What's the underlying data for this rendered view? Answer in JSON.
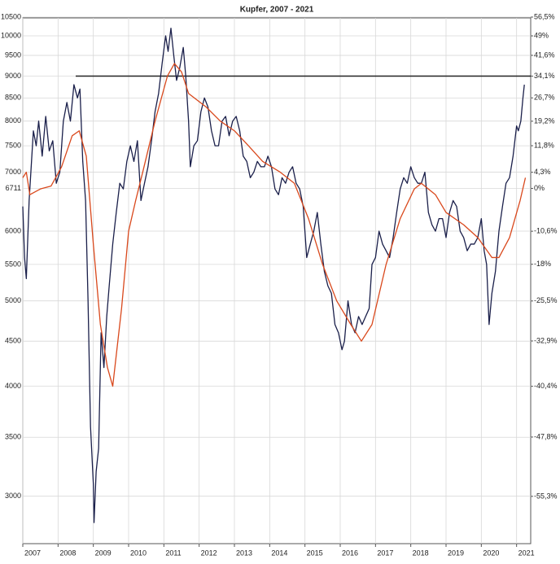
{
  "chart_data": {
    "type": "line",
    "title": "Kupfer, 2007 - 2021",
    "log_scale": true,
    "grid": true,
    "xlim": [
      2007,
      2021.4
    ],
    "xticks": [
      2007,
      2008,
      2009,
      2010,
      2011,
      2012,
      2013,
      2014,
      2015,
      2016,
      2017,
      2018,
      2019,
      2020,
      2021
    ],
    "ylim": [
      2650,
      10750
    ],
    "yticks": [
      3000,
      3500,
      4000,
      4500,
      5000,
      5500,
      6000,
      6711,
      7000,
      7500,
      8000,
      8500,
      9000,
      9500,
      10000,
      10500
    ],
    "y2lim": [
      -60.5,
      60.2
    ],
    "y2ticks": [
      {
        "value": -55.3,
        "label": "-55,3%"
      },
      {
        "value": -47.8,
        "label": "-47,8%"
      },
      {
        "value": -40.4,
        "label": "-40,4%"
      },
      {
        "value": -32.9,
        "label": "-32,9%"
      },
      {
        "value": -25.5,
        "label": "-25,5%"
      },
      {
        "value": -18,
        "label": "-18%"
      },
      {
        "value": -10.6,
        "label": "-10,6%"
      },
      {
        "value": 0,
        "label": "0%"
      },
      {
        "value": 4.3,
        "label": "4,3%"
      },
      {
        "value": 11.8,
        "label": "11,8%"
      },
      {
        "value": 19.2,
        "label": "19,2%"
      },
      {
        "value": 26.7,
        "label": "26,7%"
      },
      {
        "value": 34.1,
        "label": "34,1%"
      },
      {
        "value": 41.6,
        "label": "41,6%"
      },
      {
        "value": 49,
        "label": "49%"
      },
      {
        "value": 56.5,
        "label": "56,5%"
      }
    ],
    "hlines": [
      {
        "y": 9000,
        "x_start": 2008.5,
        "color": "#222222"
      }
    ],
    "series": [
      {
        "color": "#1a1f4a",
        "x": [
          2007.0,
          2007.05,
          2007.1,
          2007.18,
          2007.3,
          2007.38,
          2007.45,
          2007.55,
          2007.65,
          2007.75,
          2007.85,
          2007.95,
          2008.05,
          2008.15,
          2008.25,
          2008.35,
          2008.45,
          2008.55,
          2008.62,
          2008.7,
          2008.78,
          2008.85,
          2008.92,
          2009.0,
          2009.02,
          2009.08,
          2009.15,
          2009.22,
          2009.3,
          2009.38,
          2009.45,
          2009.55,
          2009.65,
          2009.75,
          2009.85,
          2009.95,
          2010.05,
          2010.15,
          2010.25,
          2010.35,
          2010.45,
          2010.55,
          2010.65,
          2010.75,
          2010.85,
          2010.95,
          2011.05,
          2011.12,
          2011.2,
          2011.28,
          2011.36,
          2011.45,
          2011.55,
          2011.62,
          2011.7,
          2011.75,
          2011.85,
          2011.95,
          2012.05,
          2012.15,
          2012.25,
          2012.35,
          2012.45,
          2012.55,
          2012.65,
          2012.75,
          2012.85,
          2012.95,
          2013.05,
          2013.15,
          2013.25,
          2013.35,
          2013.45,
          2013.55,
          2013.65,
          2013.75,
          2013.85,
          2013.95,
          2014.05,
          2014.15,
          2014.25,
          2014.35,
          2014.45,
          2014.55,
          2014.65,
          2014.75,
          2014.85,
          2014.95,
          2015.05,
          2015.15,
          2015.25,
          2015.35,
          2015.45,
          2015.55,
          2015.65,
          2015.75,
          2015.85,
          2015.95,
          2016.05,
          2016.12,
          2016.22,
          2016.32,
          2016.42,
          2016.52,
          2016.62,
          2016.72,
          2016.82,
          2016.9,
          2017.0,
          2017.1,
          2017.2,
          2017.3,
          2017.4,
          2017.5,
          2017.6,
          2017.7,
          2017.8,
          2017.9,
          2018.0,
          2018.1,
          2018.2,
          2018.3,
          2018.4,
          2018.5,
          2018.6,
          2018.7,
          2018.8,
          2018.9,
          2019.0,
          2019.1,
          2019.2,
          2019.3,
          2019.4,
          2019.5,
          2019.6,
          2019.7,
          2019.8,
          2019.9,
          2020.0,
          2020.08,
          2020.15,
          2020.22,
          2020.3,
          2020.4,
          2020.5,
          2020.6,
          2020.7,
          2020.8,
          2020.9,
          2021.0,
          2021.05,
          2021.12,
          2021.18,
          2021.22
        ],
        "values": [
          6400,
          5600,
          5300,
          6500,
          7800,
          7500,
          8000,
          7300,
          8100,
          7400,
          7600,
          6800,
          7000,
          8000,
          8400,
          8000,
          8800,
          8500,
          8700,
          7200,
          6500,
          5000,
          3600,
          3100,
          2800,
          3200,
          3400,
          4600,
          4200,
          4800,
          5200,
          5800,
          6300,
          6800,
          6700,
          7200,
          7500,
          7200,
          7600,
          6500,
          6800,
          7100,
          7600,
          8200,
          8600,
          9300,
          10000,
          9600,
          10200,
          9500,
          8900,
          9200,
          9700,
          9000,
          8000,
          7100,
          7500,
          7600,
          8200,
          8500,
          8300,
          7800,
          7500,
          7500,
          8000,
          8100,
          7700,
          8000,
          8100,
          7800,
          7300,
          7200,
          6900,
          7000,
          7200,
          7100,
          7100,
          7300,
          7100,
          6700,
          6600,
          6900,
          6800,
          7000,
          7100,
          6800,
          6700,
          6400,
          5600,
          5800,
          6000,
          6300,
          5800,
          5400,
          5200,
          5100,
          4700,
          4600,
          4400,
          4500,
          5000,
          4700,
          4600,
          4800,
          4700,
          4800,
          4900,
          5500,
          5600,
          6000,
          5800,
          5700,
          5600,
          5900,
          6300,
          6700,
          6900,
          6800,
          7100,
          6900,
          6800,
          6800,
          7000,
          6300,
          6100,
          6000,
          6200,
          6200,
          5900,
          6300,
          6500,
          6400,
          6000,
          5900,
          5700,
          5800,
          5800,
          5900,
          6200,
          5700,
          5500,
          4700,
          5100,
          5400,
          6000,
          6400,
          6800,
          6900,
          7300,
          7900,
          7800,
          8000,
          8500,
          8800
        ]
      },
      {
        "color": "#d9481c",
        "x": [
          2007.0,
          2007.1,
          2007.2,
          2007.5,
          2007.8,
          2008.1,
          2008.4,
          2008.6,
          2008.8,
          2009.0,
          2009.2,
          2009.4,
          2009.55,
          2009.8,
          2010.0,
          2010.2,
          2010.4,
          2010.75,
          2011.1,
          2011.3,
          2011.5,
          2011.7,
          2012.2,
          2012.6,
          2013.0,
          2013.4,
          2013.8,
          2014.3,
          2014.7,
          2015.1,
          2015.5,
          2015.9,
          2016.3,
          2016.6,
          2016.9,
          2017.3,
          2017.7,
          2018.1,
          2018.3,
          2018.7,
          2019.0,
          2019.5,
          2019.9,
          2020.3,
          2020.5,
          2020.8,
          2021.1,
          2021.25
        ],
        "values": [
          6900,
          7000,
          6600,
          6700,
          6750,
          7100,
          7700,
          7800,
          7300,
          5800,
          4700,
          4200,
          4000,
          4900,
          6000,
          6500,
          7000,
          8000,
          9000,
          9300,
          9100,
          8600,
          8300,
          8000,
          7800,
          7500,
          7200,
          7000,
          6800,
          6200,
          5500,
          5000,
          4700,
          4500,
          4700,
          5500,
          6200,
          6700,
          6800,
          6600,
          6300,
          6100,
          5900,
          5600,
          5600,
          5900,
          6500,
          6900
        ]
      }
    ]
  }
}
